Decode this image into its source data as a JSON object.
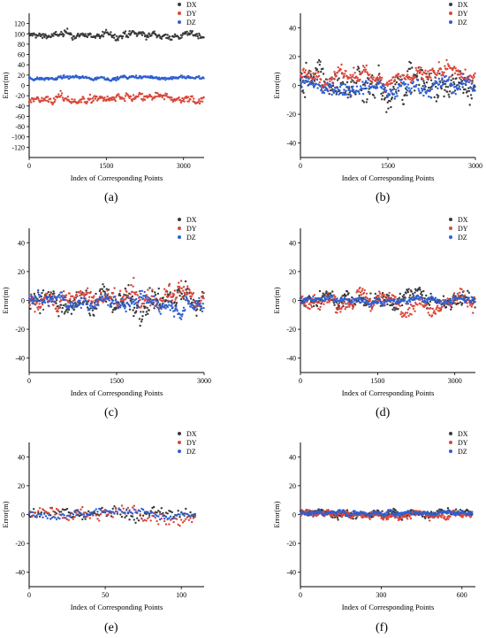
{
  "figure": {
    "panel_labels": [
      "(a)",
      "(b)",
      "(c)",
      "(d)",
      "(e)",
      "(f)"
    ]
  },
  "colors": {
    "DX": "#3a3a3a",
    "DY": "#d9483b",
    "DZ": "#2f5fd0",
    "axis": "#000000"
  },
  "chart_data": [
    {
      "type": "scatter",
      "title": "",
      "xlabel": "Index of Corresponding Points",
      "ylabel": "Error(m)",
      "xlim": [
        0,
        3400
      ],
      "ylim": [
        -140,
        140
      ],
      "xticks": [
        0,
        1500,
        3000
      ],
      "yticks": [
        -120,
        -100,
        -80,
        -60,
        -40,
        -20,
        0,
        20,
        40,
        60,
        80,
        100,
        120
      ],
      "n_points": 3400,
      "legend": "top-right",
      "series": [
        {
          "name": "DX",
          "center": 97,
          "spread": 8
        },
        {
          "name": "DY",
          "center": -27,
          "spread": 10
        },
        {
          "name": "DZ",
          "center": 15,
          "spread": 4
        }
      ]
    },
    {
      "type": "scatter",
      "title": "",
      "xlabel": "Index of Corresponding Points",
      "ylabel": "Error(m)",
      "xlim": [
        0,
        3000
      ],
      "ylim": [
        -50,
        50
      ],
      "xticks": [
        0,
        1500,
        3000
      ],
      "yticks": [
        -40,
        -20,
        0,
        20,
        40
      ],
      "n_points": 3000,
      "legend": "top-right",
      "series": [
        {
          "name": "DX",
          "center": 2,
          "spread": 14
        },
        {
          "name": "DY",
          "center": 6,
          "spread": 6
        },
        {
          "name": "DZ",
          "center": 0,
          "spread": 6
        }
      ]
    },
    {
      "type": "scatter",
      "title": "",
      "xlabel": "Index of Corresponding Points",
      "ylabel": "Error(m)",
      "xlim": [
        0,
        3000
      ],
      "ylim": [
        -50,
        50
      ],
      "xticks": [
        0,
        1500,
        3000
      ],
      "yticks": [
        -40,
        -20,
        0,
        20,
        40
      ],
      "n_points": 3000,
      "legend": "top-right",
      "series": [
        {
          "name": "DX",
          "center": 0,
          "spread": 11
        },
        {
          "name": "DY",
          "center": 1,
          "spread": 8
        },
        {
          "name": "DZ",
          "center": -1,
          "spread": 6
        }
      ]
    },
    {
      "type": "scatter",
      "title": "",
      "xlabel": "Index of Corresponding Points",
      "ylabel": "Error(m)",
      "xlim": [
        0,
        3400
      ],
      "ylim": [
        -50,
        50
      ],
      "xticks": [
        0,
        1500,
        3000
      ],
      "yticks": [
        -40,
        -20,
        0,
        20,
        40
      ],
      "n_points": 3400,
      "legend": "top-right",
      "series": [
        {
          "name": "DX",
          "center": 2,
          "spread": 7
        },
        {
          "name": "DY",
          "center": 0,
          "spread": 7
        },
        {
          "name": "DZ",
          "center": 0,
          "spread": 3
        }
      ]
    },
    {
      "type": "scatter",
      "title": "",
      "xlabel": "Index of Corresponding Points",
      "ylabel": "Error(m)",
      "xlim": [
        0,
        115
      ],
      "ylim": [
        -50,
        50
      ],
      "xticks": [
        0,
        50,
        100
      ],
      "yticks": [
        -40,
        -20,
        0,
        20,
        40
      ],
      "n_points": 110,
      "legend": "top-right",
      "series": [
        {
          "name": "DX",
          "center": 0,
          "spread": 5
        },
        {
          "name": "DY",
          "center": 1,
          "spread": 6
        },
        {
          "name": "DZ",
          "center": 0,
          "spread": 3
        }
      ]
    },
    {
      "type": "scatter",
      "title": "",
      "xlabel": "Index of Corresponding Points",
      "ylabel": "Error(m)",
      "xlim": [
        0,
        650
      ],
      "ylim": [
        -50,
        50
      ],
      "xticks": [
        0,
        300,
        600
      ],
      "yticks": [
        -40,
        -20,
        0,
        20,
        40
      ],
      "n_points": 640,
      "legend": "top-right",
      "series": [
        {
          "name": "DX",
          "center": 1,
          "spread": 3
        },
        {
          "name": "DY",
          "center": 0,
          "spread": 3
        },
        {
          "name": "DZ",
          "center": 1,
          "spread": 2
        }
      ]
    }
  ]
}
